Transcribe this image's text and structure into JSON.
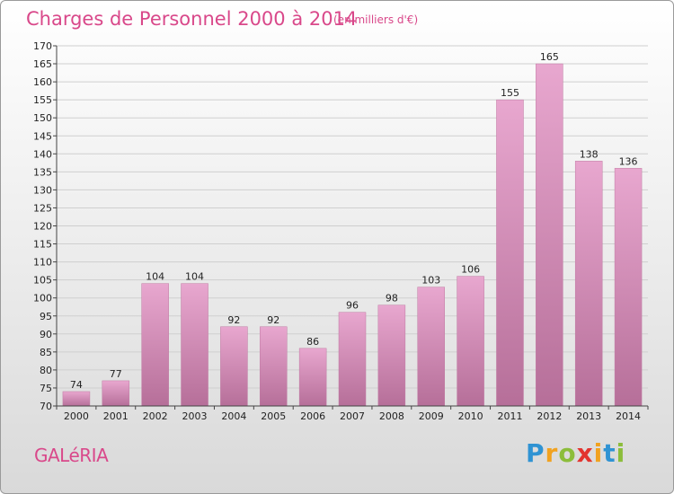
{
  "chart_data": {
    "type": "bar",
    "title": "Charges de Personnel 2000 à 2014",
    "subtitle": "(en milliers d'€)",
    "categories": [
      "2000",
      "2001",
      "2002",
      "2003",
      "2004",
      "2005",
      "2006",
      "2007",
      "2008",
      "2009",
      "2010",
      "2011",
      "2012",
      "2013",
      "2014"
    ],
    "values": [
      74,
      77,
      104,
      104,
      92,
      92,
      86,
      96,
      98,
      103,
      106,
      155,
      165,
      138,
      136
    ],
    "ylim": [
      70,
      170
    ],
    "ytick_step": 5,
    "grid": true,
    "bar_color": "#d98ab8"
  },
  "footer": {
    "commune": "GALéRIA",
    "brand_letters": [
      "P",
      "r",
      "o",
      "x",
      "i",
      "t",
      "i"
    ],
    "brand_colors": [
      "#2f93d3",
      "#f1a21f",
      "#8cbd3b",
      "#e3342f",
      "#f1a21f",
      "#2f93d3",
      "#8cbd3b"
    ]
  }
}
